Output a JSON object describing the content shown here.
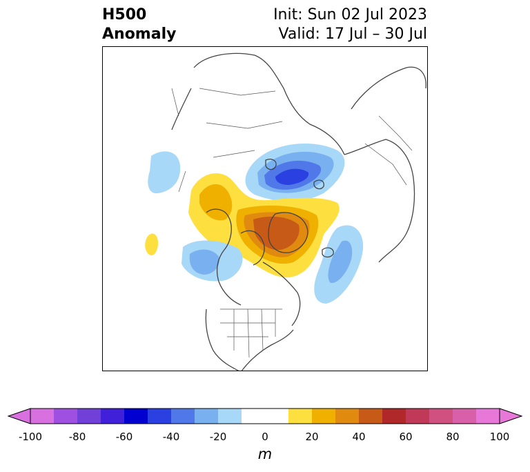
{
  "title": {
    "left_line1": "H500",
    "left_line2": "Anomaly",
    "right_line1": "Init: Sun 02 Jul 2023",
    "right_line2": "Valid: 17 Jul – 30 Jul"
  },
  "colorbar": {
    "unit": "m",
    "min": -100,
    "max": 100,
    "step": 10,
    "extend": "both",
    "tick_labels": [
      "-100",
      "-80",
      "-60",
      "-40",
      "-20",
      "0",
      "20",
      "40",
      "60",
      "80",
      "100"
    ],
    "colors": [
      "#d870e0",
      "#a050e0",
      "#7040d8",
      "#4020d8",
      "#0000d0",
      "#2a40e0",
      "#5078e8",
      "#78b0f0",
      "#a8d8f8",
      "#ffffff",
      "#ffffff",
      "#fde040",
      "#f0b000",
      "#e08a10",
      "#c85a18",
      "#b02828",
      "#c03a58",
      "#d05080",
      "#d860a8",
      "#e878d8"
    ],
    "under_color": "#d870e0",
    "over_color": "#e878d8"
  }
}
